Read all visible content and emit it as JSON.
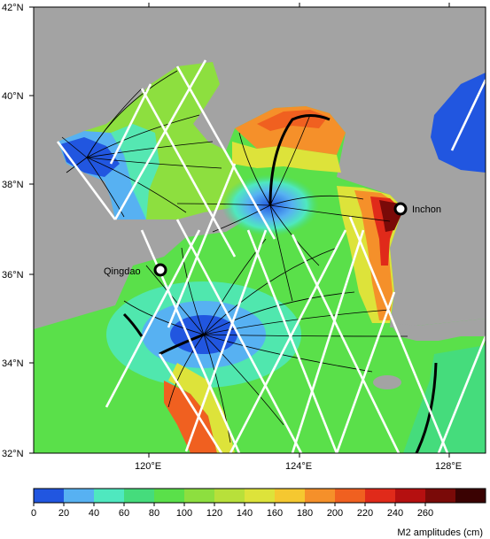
{
  "map": {
    "lat_labels": [
      "42°N",
      "40°N",
      "38°N",
      "36°N",
      "34°N",
      "32°N"
    ],
    "lon_labels": [
      "120°E",
      "124°E",
      "128°E"
    ],
    "cities": [
      {
        "name": "Inchon"
      },
      {
        "name": "Qingdao"
      }
    ]
  },
  "colorbar": {
    "title": "M2 amplitudes (cm)",
    "tick_labels": [
      "0",
      "20",
      "40",
      "60",
      "80",
      "100",
      "120",
      "140",
      "160",
      "180",
      "200",
      "220",
      "240",
      "260"
    ],
    "colors": [
      "#2156e0",
      "#57b1f2",
      "#4fe8bf",
      "#45dc7c",
      "#5ae04a",
      "#8ddf3f",
      "#b8e03a",
      "#dde33a",
      "#f5c830",
      "#f5902a",
      "#f06020",
      "#e02a1a",
      "#b51010",
      "#7a0a08",
      "#3a0202"
    ]
  },
  "colors": {
    "land": "#a3a3a3",
    "track": "#ffffff",
    "amphidrome_line": "#000000"
  }
}
